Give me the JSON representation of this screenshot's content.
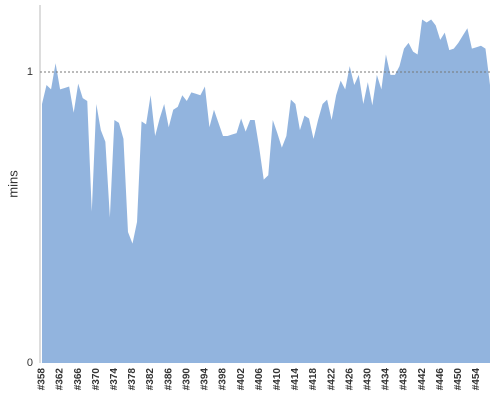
{
  "chart_data": {
    "type": "area",
    "y_label": "mins",
    "color": "#92b4de",
    "categories": [
      "#358",
      null,
      null,
      null,
      "#362",
      null,
      null,
      null,
      "#366",
      null,
      null,
      null,
      "#370",
      null,
      null,
      null,
      "#374",
      null,
      null,
      null,
      "#378",
      null,
      null,
      null,
      "#382",
      null,
      null,
      null,
      "#386",
      null,
      null,
      null,
      "#390",
      null,
      null,
      null,
      "#394",
      null,
      null,
      null,
      "#398",
      null,
      null,
      null,
      "#402",
      null,
      null,
      null,
      "#406",
      null,
      null,
      null,
      "#410",
      null,
      null,
      null,
      "#414",
      null,
      null,
      null,
      "#418",
      null,
      null,
      null,
      "#422",
      null,
      null,
      null,
      "#426",
      null,
      null,
      null,
      "#430",
      null,
      null,
      null,
      "#434",
      null,
      null,
      null,
      "#438",
      null,
      null,
      null,
      "#442",
      null,
      null,
      null,
      "#446",
      null,
      null,
      null,
      "#450",
      null,
      null,
      null,
      "#454",
      null,
      null,
      null
    ],
    "values": [
      0.89,
      0.955,
      0.94,
      1.03,
      0.94,
      0.945,
      0.95,
      0.86,
      0.96,
      0.91,
      0.9,
      0.52,
      0.89,
      0.8,
      0.76,
      0.5,
      0.835,
      0.825,
      0.77,
      0.45,
      0.41,
      0.485,
      0.83,
      0.82,
      0.92,
      0.78,
      0.84,
      0.89,
      0.81,
      0.87,
      0.88,
      0.92,
      0.9,
      0.93,
      0.925,
      0.92,
      0.95,
      0.81,
      0.87,
      0.825,
      0.78,
      0.78,
      0.785,
      0.79,
      0.84,
      0.795,
      0.835,
      0.835,
      0.74,
      0.63,
      0.645,
      0.835,
      0.79,
      0.74,
      0.78,
      0.905,
      0.89,
      0.8,
      0.85,
      0.84,
      0.77,
      0.835,
      0.89,
      0.905,
      0.835,
      0.92,
      0.97,
      0.94,
      1.02,
      0.955,
      0.99,
      0.89,
      0.965,
      0.885,
      0.99,
      0.94,
      1.06,
      0.99,
      0.99,
      1.02,
      1.08,
      1.1,
      1.07,
      1.06,
      1.18,
      1.17,
      1.18,
      1.16,
      1.11,
      1.135,
      1.075,
      1.08,
      1.1,
      1.125,
      1.15,
      1.08,
      1.085,
      1.09,
      1.08,
      0.955
    ],
    "ylim": [
      0,
      1.23
    ],
    "yticks": [
      0,
      1
    ],
    "grid": true
  }
}
